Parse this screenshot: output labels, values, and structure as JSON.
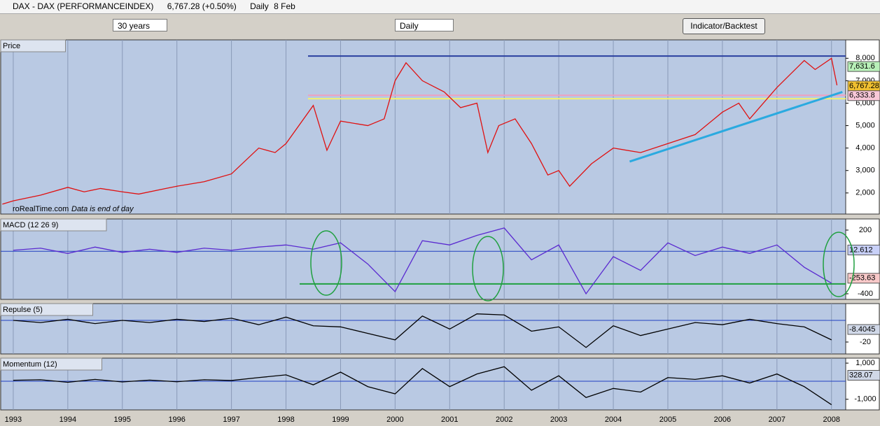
{
  "window": {
    "title": "DAX - DAX (PERFORMANCEINDEX)",
    "price": "6,767.28 (+0.50%)",
    "interval": "Daily",
    "date": "8 Feb"
  },
  "toolbar": {
    "range": "30 years",
    "period": "Daily",
    "button": "Indicator/Backtest"
  },
  "chart_data": [
    {
      "type": "line",
      "title": "Price",
      "watermark": "roRealTime.com",
      "note": "Data is end of day",
      "color": "#e01010",
      "x": [
        1992.8,
        1993.0,
        1993.5,
        1994.0,
        1994.3,
        1994.6,
        1995.0,
        1995.3,
        1995.8,
        1996.0,
        1996.5,
        1997.0,
        1997.5,
        1997.8,
        1998.0,
        1998.5,
        1998.75,
        1999.0,
        1999.5,
        1999.8,
        2000.0,
        2000.2,
        2000.5,
        2000.9,
        2001.2,
        2001.5,
        2001.7,
        2001.9,
        2002.2,
        2002.5,
        2002.8,
        2003.0,
        2003.2,
        2003.6,
        2004.0,
        2004.5,
        2005.0,
        2005.5,
        2006.0,
        2006.3,
        2006.5,
        2007.0,
        2007.5,
        2007.7,
        2008.0,
        2008.1
      ],
      "values": [
        1500,
        1650,
        1900,
        2250,
        2050,
        2200,
        2050,
        1950,
        2200,
        2300,
        2500,
        2850,
        4000,
        3800,
        4200,
        5900,
        3900,
        5200,
        5000,
        5300,
        7000,
        7800,
        7000,
        6500,
        5800,
        6000,
        3800,
        5000,
        5300,
        4200,
        2800,
        3000,
        2300,
        3300,
        4000,
        3800,
        4200,
        4600,
        5600,
        6000,
        5300,
        6700,
        7900,
        7500,
        8000,
        6800
      ],
      "xlim": [
        1992.77,
        2008.26
      ],
      "ylim": [
        1060,
        8820
      ],
      "yticks": [
        {
          "value": 2000,
          "label": "2,000"
        },
        {
          "value": 3000,
          "label": "3,000"
        },
        {
          "value": 4000,
          "label": "4,000"
        },
        {
          "value": 5000,
          "label": "5,000"
        },
        {
          "value": 6000,
          "label": "6,000"
        },
        {
          "value": 7000,
          "label": "7,000"
        },
        {
          "value": 8000,
          "label": "8,000"
        }
      ],
      "hlines": [
        {
          "value": 8100,
          "color": "#2a3fa0"
        },
        {
          "value": 6350,
          "color": "#f0a0c0"
        },
        {
          "value": 6200,
          "color": "#f0f070"
        }
      ],
      "trendline": {
        "x": [
          2004.3,
          2008.2
        ],
        "y": [
          3400,
          6500
        ],
        "color": "#2aaae0"
      },
      "last_labels": [
        {
          "value": 7631.6,
          "label": "7,631.6",
          "color": "#b8f0b8"
        },
        {
          "value": 6767.28,
          "label": "6,767.28",
          "color": "#f0c030"
        },
        {
          "value": 6333.8,
          "label": "6,333.8",
          "color": "#f8c8d8"
        }
      ]
    },
    {
      "type": "line",
      "title": "MACD (12 26 9)",
      "color": "#5a2ad0",
      "x": [
        1993,
        1993.5,
        1994,
        1994.5,
        1995,
        1995.5,
        1996,
        1996.5,
        1997,
        1997.5,
        1998,
        1998.5,
        1999,
        1999.5,
        2000,
        2000.5,
        2001,
        2001.5,
        2002,
        2002.5,
        2003,
        2003.5,
        2004,
        2004.5,
        2005,
        2005.5,
        2006,
        2006.5,
        2007,
        2007.5,
        2008
      ],
      "values": [
        10,
        30,
        -20,
        40,
        -10,
        20,
        -10,
        30,
        10,
        40,
        60,
        20,
        80,
        -120,
        -380,
        100,
        60,
        150,
        220,
        -80,
        60,
        -400,
        -50,
        -180,
        80,
        -40,
        40,
        -20,
        60,
        -150,
        -300
      ],
      "xlim": [
        1992.77,
        2008.26
      ],
      "ylim": [
        -453,
        305
      ],
      "yticks": [
        200,
        -400
      ],
      "hlines": [
        {
          "value": -307,
          "color": "#20a040"
        }
      ],
      "last_labels": [
        {
          "value": 12.612,
          "label": "12.612",
          "color": "#c8d0f8"
        },
        {
          "value": -253.63,
          "label": "-253.63",
          "color": "#f8c8c8"
        }
      ]
    },
    {
      "type": "line",
      "title": "Repulse (5)",
      "color": "#000000",
      "x": [
        1993,
        1993.5,
        1994,
        1994.5,
        1995,
        1995.5,
        1996,
        1996.5,
        1997,
        1997.5,
        1998,
        1998.5,
        1999,
        1999.5,
        2000,
        2000.5,
        2001,
        2001.5,
        2002,
        2002.5,
        2003,
        2003.5,
        2004,
        2004.5,
        2005,
        2005.5,
        2006,
        2006.5,
        2007,
        2007.5,
        2008
      ],
      "values": [
        0,
        -2,
        1,
        -3,
        0,
        -2,
        1,
        -1,
        2,
        -4,
        3,
        -5,
        -6,
        -12,
        -18,
        4,
        -8,
        6,
        5,
        -10,
        -6,
        -25,
        -5,
        -14,
        -8,
        -2,
        -4,
        1,
        -3,
        -6,
        -18
      ],
      "xlim": [
        1992.77,
        2008.26
      ],
      "ylim": [
        -31,
        15.5
      ],
      "yticks": [
        -20
      ],
      "last_labels": [
        {
          "value": -8.4045,
          "label": "-8.4045",
          "color": "#d0d8e8"
        }
      ]
    },
    {
      "type": "line",
      "title": "Momentum (12)",
      "color": "#000000",
      "x": [
        1993,
        1993.5,
        1994,
        1994.5,
        1995,
        1995.5,
        1996,
        1996.5,
        1997,
        1997.5,
        1998,
        1998.5,
        1999,
        1999.5,
        2000,
        2000.5,
        2001,
        2001.5,
        2002,
        2002.5,
        2003,
        2003.5,
        2004,
        2004.5,
        2005,
        2005.5,
        2006,
        2006.5,
        2007,
        2007.5,
        2008
      ],
      "values": [
        50,
        80,
        -60,
        100,
        -40,
        60,
        -30,
        80,
        40,
        200,
        350,
        -200,
        500,
        -300,
        -700,
        700,
        -300,
        400,
        800,
        -500,
        300,
        -900,
        -400,
        -600,
        200,
        100,
        300,
        -100,
        400,
        -300,
        -1300
      ],
      "xlim": [
        1992.77,
        2008.26
      ],
      "ylim": [
        -1588,
        1275
      ],
      "yticks": [
        {
          "value": 1000,
          "label": "1,000"
        },
        {
          "value": -1000,
          "label": "-1,000"
        }
      ],
      "xticks": [
        1993,
        1994,
        1995,
        1996,
        1997,
        1998,
        1999,
        2000,
        2001,
        2002,
        2003,
        2004,
        2005,
        2006,
        2007,
        2008
      ],
      "last_labels": [
        {
          "value": 328.07,
          "label": "328.07",
          "color": "#d0d8e8"
        }
      ]
    }
  ]
}
